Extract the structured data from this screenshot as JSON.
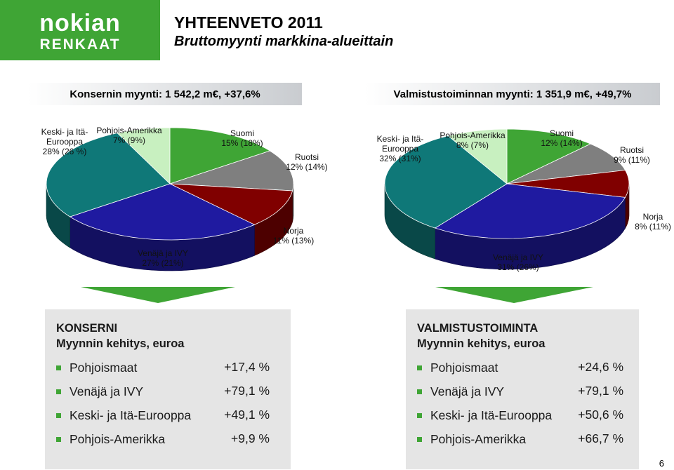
{
  "header": {
    "logo_line1": "nokian",
    "logo_line2": "RENKAAT",
    "title": "YHTEENVETO 2011",
    "subtitle": "Bruttomyynti markkina-alueittain"
  },
  "colors": {
    "logo_green": "#3fa535",
    "suomi": "#3fa535",
    "ruotsi": "#7f7f7f",
    "norja": "#800000",
    "venaja": "#1f1aa0",
    "keski": "#0f7878",
    "pohjois": "#c8f0c0"
  },
  "chart_data": [
    {
      "type": "pie",
      "title": "Konsernin myynti: 1 542,2 m€, +37,6%",
      "slices": [
        {
          "label_line1": "Suomi",
          "label_line2": "15% (18%)",
          "value": 15,
          "prev": 18,
          "color": "#3fa535"
        },
        {
          "label_line1": "Ruotsi",
          "label_line2": "12% (14%)",
          "value": 12,
          "prev": 14,
          "color": "#7f7f7f"
        },
        {
          "label_line1": "Norja",
          "label_line2": "11% (13%)",
          "value": 11,
          "prev": 13,
          "color": "#800000"
        },
        {
          "label_line1": "Venäjä ja IVY",
          "label_line2": "27% (21%)",
          "value": 27,
          "prev": 21,
          "color": "#1f1aa0"
        },
        {
          "label_line1": "Keski- ja Itä-",
          "label_line1b": "Eurooppa",
          "label_line2": "28% (26 %)",
          "value": 28,
          "prev": 26,
          "color": "#0f7878"
        },
        {
          "label_line1": "Pohjois-Amerikka",
          "label_line2": "7% (9%)",
          "value": 7,
          "prev": 9,
          "color": "#c8f0c0"
        }
      ]
    },
    {
      "type": "pie",
      "title": "Valmistustoiminnan myynti: 1 351,9 m€, +49,7%",
      "slices": [
        {
          "label_line1": "Suomi",
          "label_line2": "12% (14%)",
          "value": 12,
          "prev": 14,
          "color": "#3fa535"
        },
        {
          "label_line1": "Ruotsi",
          "label_line2": "9% (11%)",
          "value": 9,
          "prev": 11,
          "color": "#7f7f7f"
        },
        {
          "label_line1": "Norja",
          "label_line2": "8% (11%)",
          "value": 8,
          "prev": 11,
          "color": "#800000"
        },
        {
          "label_line1": "Venäjä ja IVY",
          "label_line2": "31% (26%)",
          "value": 31,
          "prev": 26,
          "color": "#1f1aa0"
        },
        {
          "label_line1": "Keski- ja Itä-",
          "label_line1b": "Eurooppa",
          "label_line2": "32% (31%)",
          "value": 32,
          "prev": 31,
          "color": "#0f7878"
        },
        {
          "label_line1": "Pohjois-Amerikka",
          "label_line2": "8% (7%)",
          "value": 8,
          "prev": 7,
          "color": "#c8f0c0"
        }
      ]
    }
  ],
  "boxes": {
    "left": {
      "heading1": "KONSERNI",
      "heading2": "Myynnin kehitys, euroa",
      "items": [
        {
          "label": "Pohjoismaat",
          "value": "+17,4 %"
        },
        {
          "label": "Venäjä ja IVY",
          "value": "+79,1 %"
        },
        {
          "label": "Keski- ja Itä-Eurooppa",
          "value": "+49,1 %"
        },
        {
          "label": "Pohjois-Amerikka",
          "value": "+9,9 %"
        }
      ]
    },
    "right": {
      "heading1": "VALMISTUSTOIMINTA",
      "heading2": "Myynnin kehitys, euroa",
      "items": [
        {
          "label": "Pohjoismaat",
          "value": "+24,6 %"
        },
        {
          "label": "Venäjä ja IVY",
          "value": "+79,1 %"
        },
        {
          "label": "Keski- ja Itä-Eurooppa",
          "value": "+50,6 %"
        },
        {
          "label": "Pohjois-Amerikka",
          "value": "+66,7 %"
        }
      ]
    }
  },
  "page_number": "6"
}
